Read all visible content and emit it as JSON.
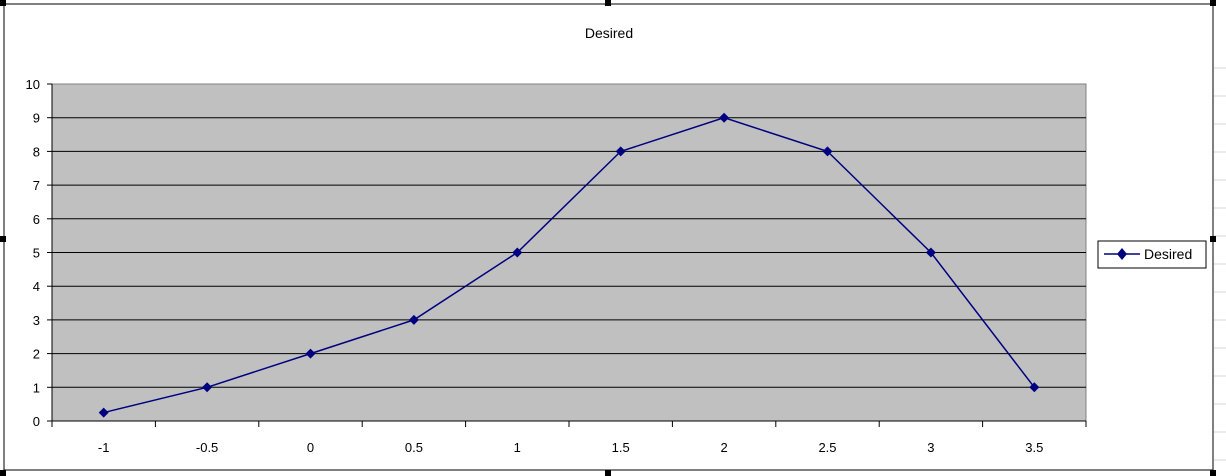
{
  "colors": {
    "plot_background": "#c0c0c0",
    "series_line": "#000080",
    "gridline": "#000000",
    "sheet_gridline": "#d4d4d4"
  },
  "chart_data": {
    "type": "line",
    "title": "Desired",
    "categories": [
      "-1",
      "-0.5",
      "0",
      "0.5",
      "1",
      "1.5",
      "2",
      "2.5",
      "3",
      "3.5"
    ],
    "series": [
      {
        "name": "Desired",
        "marker": "diamond",
        "values": [
          0.25,
          1,
          2,
          3,
          5,
          8,
          9,
          8,
          5,
          1
        ]
      }
    ],
    "ylim": [
      0,
      10
    ],
    "y_ticks": [
      "0",
      "1",
      "2",
      "3",
      "4",
      "5",
      "6",
      "7",
      "8",
      "9",
      "10"
    ],
    "grid": true,
    "legend_position": "right"
  }
}
